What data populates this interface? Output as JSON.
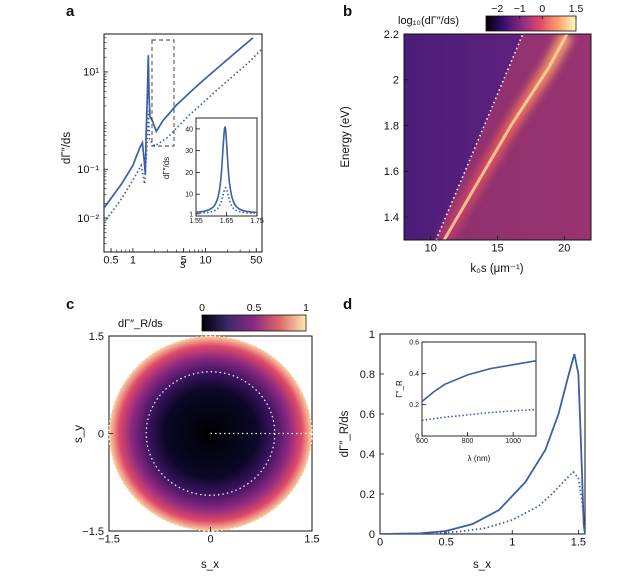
{
  "panels": {
    "a": {
      "label": "a",
      "ylabel": "dΓ″/ds",
      "xlabel": "s",
      "inset_ylabel": "dΓ″/ds"
    },
    "b": {
      "label": "b",
      "cbar_title": "log₁₀(dΓ″/ds)",
      "ylabel": "Energy (eV)",
      "xlabel": "k₀s (μm⁻¹)"
    },
    "c": {
      "label": "c",
      "cbar_title": "dΓ″_R/ds",
      "ylabel": "s_y",
      "xlabel": "s_x"
    },
    "d": {
      "label": "d",
      "ylabel": "dΓ″_R/ds",
      "xlabel": "s_x",
      "inset_ylabel": "Γ″_R",
      "inset_xlabel": "λ (nm)"
    }
  },
  "colors": {
    "series": "#3b5fa6",
    "dots": "#ffffff"
  },
  "chart_data": [
    {
      "id": "a",
      "type": "line",
      "xscale": "log",
      "yscale": "log",
      "xlim": [
        0.4,
        60
      ],
      "ylim": [
        0.002,
        60
      ],
      "xticks": [
        {
          "v": 0.5,
          "label": "0.5"
        },
        {
          "v": 1,
          "label": "1"
        },
        {
          "v": 5,
          "label": "5"
        },
        {
          "v": 10,
          "label": "10"
        },
        {
          "v": 50,
          "label": "50"
        }
      ],
      "yticks": [
        {
          "v": 0.01,
          "label": "10⁻²"
        },
        {
          "v": 0.1,
          "label": "10⁻¹"
        },
        {
          "v": 10,
          "label": "10¹"
        }
      ],
      "series": [
        {
          "style": "solid",
          "points": [
            [
              0.4,
              0.016
            ],
            [
              0.7,
              0.05
            ],
            [
              1.0,
              0.12
            ],
            [
              1.25,
              0.28
            ],
            [
              1.35,
              0.35
            ],
            [
              1.43,
              0.15
            ],
            [
              1.48,
              0.08
            ],
            [
              1.52,
              0.5
            ],
            [
              1.58,
              3
            ],
            [
              1.63,
              22
            ],
            [
              1.67,
              3
            ],
            [
              1.72,
              1.2
            ],
            [
              1.85,
              1.0
            ],
            [
              2.1,
              0.6
            ],
            [
              2.6,
              1.0
            ],
            [
              4,
              2.1
            ],
            [
              8,
              5.5
            ],
            [
              20,
              18
            ],
            [
              45,
              50
            ]
          ]
        },
        {
          "style": "dotted",
          "points": [
            [
              0.4,
              0.008
            ],
            [
              0.7,
              0.025
            ],
            [
              1.0,
              0.06
            ],
            [
              1.3,
              0.12
            ],
            [
              1.45,
              0.05
            ],
            [
              1.55,
              0.25
            ],
            [
              1.63,
              1.6
            ],
            [
              1.7,
              0.4
            ],
            [
              2,
              0.3
            ],
            [
              3,
              0.45
            ],
            [
              6,
              1.3
            ],
            [
              15,
              4.5
            ],
            [
              40,
              16
            ],
            [
              60,
              30
            ]
          ]
        }
      ],
      "inset": {
        "type": "line",
        "xlim": [
          1.55,
          1.75
        ],
        "ylim": [
          0,
          45
        ],
        "xticks": [
          {
            "v": 1.55,
            "label": "1.55"
          },
          {
            "v": 1.65,
            "label": "1.65"
          },
          {
            "v": 1.75,
            "label": "1.75"
          }
        ],
        "yticks": [
          {
            "v": 1,
            "label": "1"
          },
          {
            "v": 10,
            "label": "10"
          },
          {
            "v": 20,
            "label": "20"
          },
          {
            "v": 30,
            "label": "30"
          },
          {
            "v": 40,
            "label": "40"
          }
        ],
        "series": [
          {
            "style": "solid",
            "peak": {
              "x0": 1.645,
              "height": 41,
              "width": 0.011,
              "base": 1.2
            }
          },
          {
            "style": "dotted",
            "peak": {
              "x0": 1.647,
              "height": 13,
              "width": 0.013,
              "base": 1.1
            }
          }
        ]
      }
    },
    {
      "id": "b",
      "type": "heatmap",
      "xlim": [
        8,
        22
      ],
      "ylim": [
        1.3,
        2.2
      ],
      "xticks": [
        {
          "v": 10,
          "label": "10"
        },
        {
          "v": 15,
          "label": "15"
        },
        {
          "v": 20,
          "label": "20"
        }
      ],
      "yticks": [
        {
          "v": 1.4,
          "label": "1.4"
        },
        {
          "v": 1.6,
          "label": "1.6"
        },
        {
          "v": 1.8,
          "label": "1.8"
        },
        {
          "v": 2.0,
          "label": "2"
        },
        {
          "v": 2.2,
          "label": "2.2"
        }
      ],
      "colorbar": {
        "range": [
          -2.5,
          1.5
        ],
        "ticks": [
          {
            "v": -2,
            "label": "−2"
          },
          {
            "v": -1,
            "label": "−1"
          },
          {
            "v": 0,
            "label": "0"
          },
          {
            "v": 1.5,
            "label": "1.5"
          }
        ]
      },
      "light_line": [
        [
          10.4,
          1.3
        ],
        [
          16.9,
          2.2
        ]
      ],
      "ridge": [
        [
          11.0,
          1.3
        ],
        [
          13.5,
          1.55
        ],
        [
          16.0,
          1.8
        ],
        [
          18.8,
          2.05
        ],
        [
          20.2,
          2.2
        ]
      ]
    },
    {
      "id": "c",
      "type": "heatmap",
      "xlim": [
        -1.5,
        1.5
      ],
      "ylim": [
        -1.5,
        1.5
      ],
      "xticks": [
        {
          "v": -1.5,
          "label": "−1.5"
        },
        {
          "v": 0,
          "label": "0"
        },
        {
          "v": 1.5,
          "label": "1.5"
        }
      ],
      "yticks": [
        {
          "v": -1.5,
          "label": "−1.5"
        },
        {
          "v": 0,
          "label": "0"
        },
        {
          "v": 1.5,
          "label": "1.5"
        }
      ],
      "colorbar": {
        "range": [
          0,
          1
        ],
        "ticks": [
          {
            "v": 0,
            "label": "0"
          },
          {
            "v": 0.5,
            "label": "0.5"
          },
          {
            "v": 1,
            "label": "1"
          }
        ]
      },
      "disk_radius": 1.5,
      "inner_circle_radius": 0.95,
      "radial_line": [
        [
          0,
          0
        ],
        [
          1.5,
          0
        ]
      ]
    },
    {
      "id": "d",
      "type": "line",
      "xlim": [
        0,
        1.55
      ],
      "ylim": [
        0,
        1
      ],
      "xticks": [
        {
          "v": 0,
          "label": "0"
        },
        {
          "v": 0.5,
          "label": "0.5"
        },
        {
          "v": 1,
          "label": "1"
        },
        {
          "v": 1.5,
          "label": "1.5"
        }
      ],
      "yticks": [
        {
          "v": 0,
          "label": "0"
        },
        {
          "v": 0.2,
          "label": "0.2"
        },
        {
          "v": 0.4,
          "label": "0.4"
        },
        {
          "v": 0.6,
          "label": "0.6"
        },
        {
          "v": 0.8,
          "label": "0.8"
        },
        {
          "v": 1,
          "label": "1"
        }
      ],
      "series": [
        {
          "style": "solid",
          "points": [
            [
              0,
              0
            ],
            [
              0.3,
              0.003
            ],
            [
              0.5,
              0.015
            ],
            [
              0.7,
              0.05
            ],
            [
              0.9,
              0.12
            ],
            [
              1.1,
              0.26
            ],
            [
              1.25,
              0.42
            ],
            [
              1.35,
              0.6
            ],
            [
              1.42,
              0.78
            ],
            [
              1.47,
              0.9
            ],
            [
              1.5,
              0.8
            ],
            [
              1.52,
              0.45
            ],
            [
              1.54,
              0.05
            ],
            [
              1.55,
              0
            ]
          ]
        },
        {
          "style": "dotted",
          "points": [
            [
              0,
              0
            ],
            [
              0.4,
              0.003
            ],
            [
              0.6,
              0.012
            ],
            [
              0.8,
              0.03
            ],
            [
              1.0,
              0.07
            ],
            [
              1.2,
              0.14
            ],
            [
              1.3,
              0.2
            ],
            [
              1.4,
              0.27
            ],
            [
              1.46,
              0.31
            ],
            [
              1.5,
              0.28
            ],
            [
              1.53,
              0.15
            ],
            [
              1.55,
              0
            ]
          ]
        }
      ],
      "inset": {
        "type": "line",
        "xlim": [
          600,
          1100
        ],
        "ylim": [
          0,
          0.6
        ],
        "xticks": [
          {
            "v": 600,
            "label": "600"
          },
          {
            "v": 800,
            "label": "800"
          },
          {
            "v": 1000,
            "label": "1000"
          }
        ],
        "yticks": [
          {
            "v": 0,
            "label": "0"
          },
          {
            "v": 0.2,
            "label": "0.2"
          },
          {
            "v": 0.4,
            "label": "0.4"
          },
          {
            "v": 0.6,
            "label": "0.6"
          }
        ],
        "series": [
          {
            "style": "solid",
            "points": [
              [
                600,
                0.22
              ],
              [
                650,
                0.28
              ],
              [
                700,
                0.33
              ],
              [
                800,
                0.39
              ],
              [
                900,
                0.43
              ],
              [
                1000,
                0.455
              ],
              [
                1100,
                0.48
              ]
            ]
          },
          {
            "style": "dotted",
            "points": [
              [
                600,
                0.1
              ],
              [
                700,
                0.12
              ],
              [
                800,
                0.135
              ],
              [
                900,
                0.15
              ],
              [
                1000,
                0.16
              ],
              [
                1100,
                0.17
              ]
            ]
          }
        ]
      }
    }
  ]
}
